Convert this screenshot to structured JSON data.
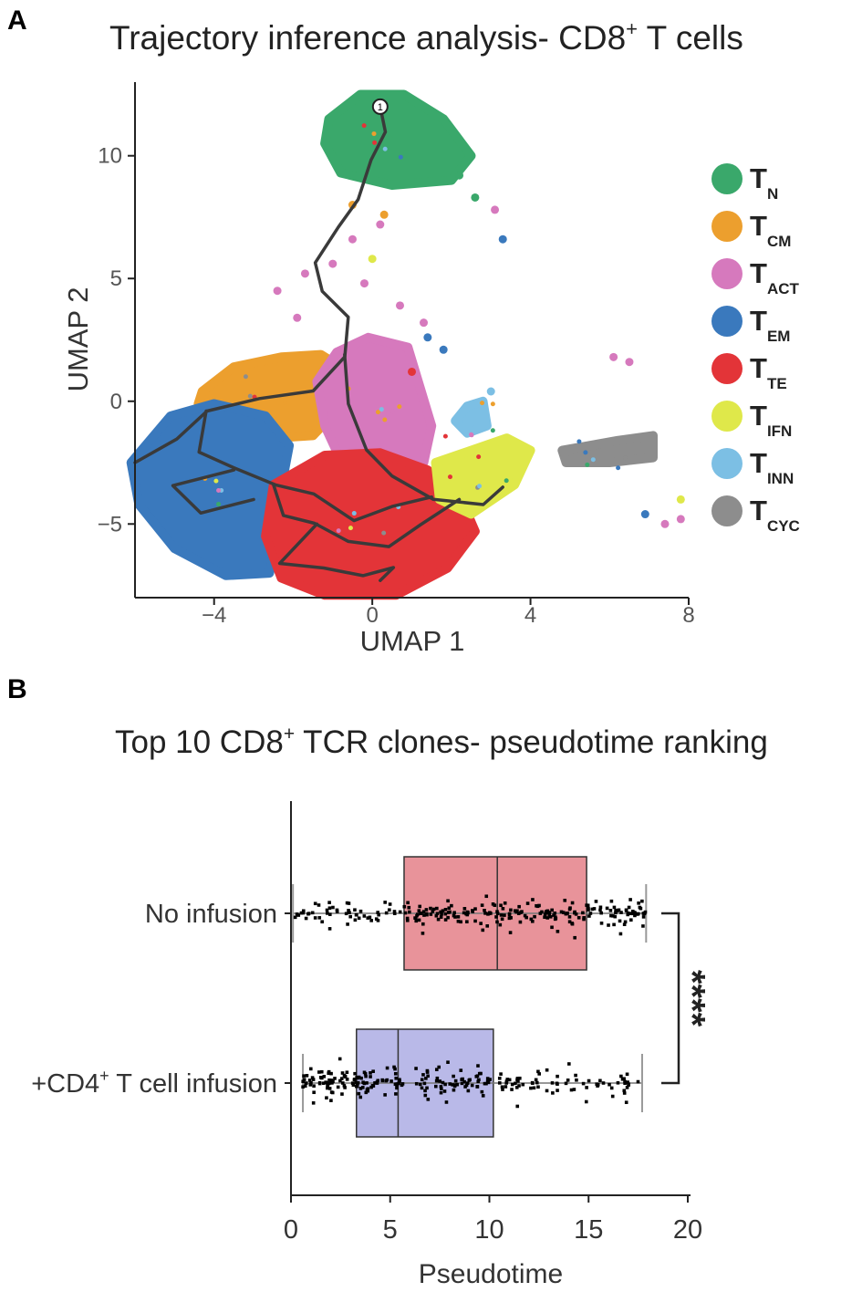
{
  "chart_data": [
    {
      "panel": "A",
      "type": "scatter",
      "title_prefix": "Trajectory inference analysis- CD8",
      "title_sup": "+",
      "title_suffix": " T cells",
      "xlabel": "UMAP 1",
      "ylabel": "UMAP 2",
      "xlim": [
        -6,
        8
      ],
      "ylim": [
        -8,
        13
      ],
      "xticks": [
        {
          "value": -4,
          "label": "−4"
        },
        {
          "value": 0,
          "label": "0"
        },
        {
          "value": 4,
          "label": "4"
        },
        {
          "value": 8,
          "label": "8"
        }
      ],
      "yticks": [
        {
          "value": -5,
          "label": "−5"
        },
        {
          "value": 0,
          "label": "0"
        },
        {
          "value": 5,
          "label": "5"
        },
        {
          "value": 10,
          "label": "10"
        }
      ],
      "start_node": {
        "label": "1",
        "x": 0.2,
        "y": 12.0
      },
      "series": [
        {
          "name": "T",
          "sub": "N",
          "color": "#3aa86b"
        },
        {
          "name": "T",
          "sub": "CM",
          "color": "#ec9f2e"
        },
        {
          "name": "T",
          "sub": "ACT",
          "color": "#d679bd"
        },
        {
          "name": "T",
          "sub": "EM",
          "color": "#3a79bd"
        },
        {
          "name": "T",
          "sub": "TE",
          "color": "#e33438"
        },
        {
          "name": "T",
          "sub": "IFN",
          "color": "#dfe84a"
        },
        {
          "name": "T",
          "sub": "INN",
          "color": "#7cbfe4"
        },
        {
          "name": "T",
          "sub": "CYC",
          "color": "#8d8d8d"
        }
      ],
      "clusters": [
        {
          "series": "TN",
          "points": [
            [
              -1.1,
              11.5
            ],
            [
              -0.3,
              12.5
            ],
            [
              0.8,
              12.5
            ],
            [
              1.8,
              11.5
            ],
            [
              2.5,
              10
            ],
            [
              2.0,
              9.0
            ],
            [
              0.5,
              8.8
            ],
            [
              -0.8,
              9.3
            ],
            [
              -1.2,
              10.5
            ]
          ]
        },
        {
          "series": "TCM",
          "points": [
            [
              -4.3,
              0.4
            ],
            [
              -3.5,
              1.4
            ],
            [
              -2.3,
              1.8
            ],
            [
              -1.3,
              1.9
            ],
            [
              -0.6,
              1.2
            ],
            [
              -0.8,
              -0.2
            ],
            [
              -1.5,
              -1.4
            ],
            [
              -2.5,
              -1.5
            ],
            [
              -3.6,
              -0.5
            ],
            [
              -4.4,
              -0.1
            ]
          ]
        },
        {
          "series": "TACT",
          "points": [
            [
              -1.4,
              0.8
            ],
            [
              -0.9,
              2.0
            ],
            [
              -0.1,
              2.6
            ],
            [
              0.9,
              2.2
            ],
            [
              1.2,
              0.6
            ],
            [
              1.5,
              -1.0
            ],
            [
              1.3,
              -2.5
            ],
            [
              0.2,
              -3.0
            ],
            [
              -0.8,
              -2.4
            ],
            [
              -1.2,
              -1.0
            ]
          ]
        },
        {
          "series": "TEM",
          "points": [
            [
              -6.1,
              -2.5
            ],
            [
              -5.1,
              -0.6
            ],
            [
              -4.0,
              -0.1
            ],
            [
              -2.7,
              -0.6
            ],
            [
              -2.1,
              -1.8
            ],
            [
              -2.3,
              -3.5
            ],
            [
              -2.4,
              -5.5
            ],
            [
              -2.6,
              -7.0
            ],
            [
              -3.7,
              -7.1
            ],
            [
              -5.0,
              -6.0
            ],
            [
              -5.9,
              -4.2
            ]
          ]
        },
        {
          "series": "TTE",
          "points": [
            [
              -2.5,
              -3.4
            ],
            [
              -1.2,
              -2.2
            ],
            [
              0.2,
              -2.1
            ],
            [
              1.4,
              -2.8
            ],
            [
              2.2,
              -3.8
            ],
            [
              2.6,
              -5.3
            ],
            [
              1.9,
              -6.8
            ],
            [
              0.6,
              -7.9
            ],
            [
              -1.2,
              -7.9
            ],
            [
              -2.3,
              -7.2
            ],
            [
              -2.7,
              -5.5
            ]
          ]
        },
        {
          "series": "TIFN",
          "points": [
            [
              1.6,
              -2.5
            ],
            [
              2.5,
              -2.0
            ],
            [
              3.4,
              -1.5
            ],
            [
              4.0,
              -2.0
            ],
            [
              3.6,
              -3.4
            ],
            [
              2.5,
              -4.6
            ],
            [
              1.7,
              -4.0
            ]
          ]
        },
        {
          "series": "TINN",
          "points": [
            [
              2.4,
              -0.2
            ],
            [
              2.8,
              0.0
            ],
            [
              2.9,
              -1.0
            ],
            [
              2.4,
              -1.3
            ],
            [
              2.1,
              -0.8
            ]
          ]
        },
        {
          "series": "TCYC",
          "points": [
            [
              4.8,
              -2.0
            ],
            [
              6.2,
              -1.6
            ],
            [
              7.1,
              -1.4
            ],
            [
              7.1,
              -2.3
            ],
            [
              6.0,
              -2.5
            ],
            [
              4.9,
              -2.5
            ]
          ]
        }
      ],
      "scattered": [
        {
          "series": "TACT",
          "x": -2.4,
          "y": 4.5
        },
        {
          "series": "TACT",
          "x": -1.7,
          "y": 5.2
        },
        {
          "series": "TACT",
          "x": -1.0,
          "y": 5.6
        },
        {
          "series": "TACT",
          "x": -0.2,
          "y": 4.8
        },
        {
          "series": "TACT",
          "x": -1.9,
          "y": 3.4
        },
        {
          "series": "TACT",
          "x": 0.7,
          "y": 3.9
        },
        {
          "series": "TACT",
          "x": -0.5,
          "y": 6.6
        },
        {
          "series": "TACT",
          "x": 0.2,
          "y": 7.2
        },
        {
          "series": "TACT",
          "x": 1.3,
          "y": 3.2
        },
        {
          "series": "TACT",
          "x": 6.1,
          "y": 1.8
        },
        {
          "series": "TACT",
          "x": 6.5,
          "y": 1.6
        },
        {
          "series": "TACT",
          "x": 7.4,
          "y": -5.0
        },
        {
          "series": "TACT",
          "x": 7.8,
          "y": -4.8
        },
        {
          "series": "TACT",
          "x": 3.1,
          "y": 7.8
        },
        {
          "series": "TEM",
          "x": 1.8,
          "y": 2.1
        },
        {
          "series": "TEM",
          "x": 1.4,
          "y": 2.6
        },
        {
          "series": "TEM",
          "x": 6.9,
          "y": -4.6
        },
        {
          "series": "TEM",
          "x": 3.3,
          "y": 6.6
        },
        {
          "series": "TCM",
          "x": -0.5,
          "y": 8.0
        },
        {
          "series": "TCM",
          "x": 0.3,
          "y": 7.6
        },
        {
          "series": "TIFN",
          "x": 7.8,
          "y": -4.0
        },
        {
          "series": "TIFN",
          "x": 0.0,
          "y": 5.8
        },
        {
          "series": "TTE",
          "x": 1.0,
          "y": 1.2
        },
        {
          "series": "TN",
          "x": 2.6,
          "y": 8.3
        },
        {
          "series": "TN",
          "x": 2.2,
          "y": 9.2
        },
        {
          "series": "TINN",
          "x": 3.0,
          "y": 0.4
        }
      ],
      "trajectory": [
        [
          [
            0.2,
            12.0
          ],
          [
            0.3,
            11.0
          ],
          [
            0.0,
            9.8
          ],
          [
            -0.3,
            8.3
          ],
          [
            -0.8,
            7.0
          ],
          [
            -1.4,
            5.6
          ],
          [
            -1.2,
            4.5
          ],
          [
            -0.6,
            3.4
          ],
          [
            -0.7,
            1.9
          ],
          [
            -1.5,
            0.4
          ],
          [
            -2.8,
            0.2
          ],
          [
            -4.2,
            -0.4
          ],
          [
            -5.0,
            -1.5
          ],
          [
            -6.0,
            -2.5
          ]
        ],
        [
          [
            -0.7,
            1.9
          ],
          [
            -0.6,
            0.0
          ],
          [
            -0.2,
            -2.0
          ],
          [
            0.5,
            -3.0
          ],
          [
            1.5,
            -3.9
          ],
          [
            2.8,
            -4.1
          ],
          [
            3.3,
            -3.5
          ]
        ],
        [
          [
            -4.2,
            -0.4
          ],
          [
            -4.4,
            -2.0
          ],
          [
            -3.5,
            -2.8
          ],
          [
            -2.5,
            -3.4
          ],
          [
            -1.5,
            -3.8
          ],
          [
            -0.5,
            -4.8
          ],
          [
            0.5,
            -4.3
          ],
          [
            1.5,
            -3.9
          ]
        ],
        [
          [
            -2.5,
            -3.4
          ],
          [
            -2.3,
            -4.6
          ],
          [
            -1.4,
            -5.0
          ],
          [
            -0.6,
            -5.6
          ],
          [
            0.4,
            -6.0
          ],
          [
            1.2,
            -5.1
          ],
          [
            2.2,
            -4.0
          ]
        ],
        [
          [
            -1.4,
            -5.0
          ],
          [
            -2.3,
            -6.6
          ],
          [
            -1.2,
            -6.9
          ],
          [
            -0.3,
            -7.1
          ],
          [
            0.6,
            -6.8
          ],
          [
            0.2,
            -7.3
          ]
        ],
        [
          [
            -3.5,
            -2.8
          ],
          [
            -5.0,
            -3.4
          ],
          [
            -4.3,
            -4.5
          ],
          [
            -3.0,
            -4.0
          ]
        ]
      ]
    },
    {
      "panel": "B",
      "type": "box",
      "title_prefix": "Top 10 CD8",
      "title_sup": "+",
      "title_suffix": " TCR clones- pseudotime ranking",
      "xlabel": "Pseudotime",
      "xlim": [
        0,
        20
      ],
      "xticks": [
        0,
        5,
        10,
        15,
        20
      ],
      "groups": [
        {
          "label": "No infusion",
          "label_sup": "",
          "label_suffix": "",
          "color": "#e8939a",
          "min": 0.1,
          "q1": 5.7,
          "median": 10.4,
          "q3": 14.9,
          "max": 17.9
        },
        {
          "label": "+CD4",
          "label_sup": "+",
          "label_suffix": " T cell infusion",
          "color": "#b9b9e8",
          "min": 0.6,
          "q1": 3.3,
          "median": 5.4,
          "q3": 10.2,
          "max": 17.7
        }
      ],
      "significance": "****"
    }
  ]
}
